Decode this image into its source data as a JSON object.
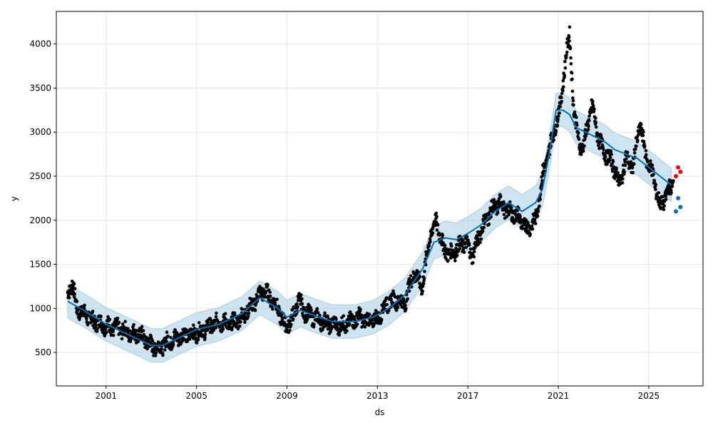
{
  "chart_data": {
    "type": "line",
    "title": "",
    "xlabel": "ds",
    "ylabel": "y",
    "xlim": [
      1998.8,
      2027.4
    ],
    "ylim": [
      120,
      4370
    ],
    "xticks": [
      2001,
      2005,
      2009,
      2013,
      2017,
      2021,
      2025
    ],
    "xtick_labels": [
      "2001",
      "2005",
      "2009",
      "2013",
      "2017",
      "2021",
      "2025"
    ],
    "yticks": [
      500,
      1000,
      1500,
      2000,
      2500,
      3000,
      3500,
      4000
    ],
    "ytick_labels": [
      "500",
      "1000",
      "1500",
      "2000",
      "2500",
      "3000",
      "3500",
      "4000"
    ],
    "grid": true,
    "colors": {
      "actual": "#000000",
      "forecast": "#0072B2",
      "interval": "#A6CEE3",
      "recent": "#FF0000"
    },
    "series": [
      {
        "role": "actual",
        "x": [
          1999.3,
          1999.5,
          1999.7,
          2000.0,
          2000.5,
          2001.0,
          2001.5,
          2002.0,
          2002.5,
          2003.0,
          2003.3,
          2003.7,
          2004.0,
          2004.5,
          2005.0,
          2005.5,
          2006.0,
          2006.5,
          2007.0,
          2007.5,
          2007.9,
          2008.2,
          2008.6,
          2008.9,
          2009.2,
          2009.5,
          2009.8,
          2010.2,
          2010.6,
          2011.0,
          2011.4,
          2011.8,
          2012.2,
          2012.6,
          2013.0,
          2013.4,
          2013.8,
          2014.2,
          2014.6,
          2015.0,
          2015.3,
          2015.6,
          2015.9,
          2016.2,
          2016.6,
          2016.9,
          2017.2,
          2017.6,
          2018.0,
          2018.4,
          2018.8,
          2019.2,
          2019.6,
          2020.0,
          2020.3,
          2020.6,
          2020.9,
          2021.1,
          2021.3,
          2021.5,
          2021.7,
          2021.9,
          2022.1,
          2022.3,
          2022.5,
          2022.8,
          2023.1,
          2023.4,
          2023.7,
          2024.0,
          2024.3,
          2024.6,
          2024.9,
          2025.2,
          2025.5,
          2025.8,
          2026.1
        ],
        "y": [
          1150,
          1300,
          1000,
          950,
          850,
          800,
          780,
          720,
          700,
          580,
          550,
          620,
          650,
          700,
          720,
          780,
          850,
          820,
          900,
          1050,
          1200,
          1150,
          1000,
          800,
          850,
          1100,
          950,
          900,
          850,
          820,
          800,
          850,
          900,
          850,
          880,
          1050,
          1100,
          1050,
          1400,
          1250,
          1800,
          2000,
          1700,
          1600,
          1700,
          1750,
          1600,
          1900,
          2100,
          2200,
          2100,
          2050,
          1900,
          2000,
          2500,
          2800,
          3100,
          3300,
          3800,
          4100,
          3200,
          2900,
          2800,
          3100,
          3300,
          2900,
          2750,
          2650,
          2400,
          2700,
          2600,
          3100,
          2700,
          2500,
          2150,
          2300,
          2450
        ]
      },
      {
        "role": "forecast",
        "x": [
          1999.3,
          2000.0,
          2001.0,
          2002.0,
          2003.0,
          2003.5,
          2004.0,
          2005.0,
          2006.0,
          2007.0,
          2007.8,
          2008.6,
          2009.0,
          2009.6,
          2010.2,
          2011.0,
          2012.0,
          2012.8,
          2013.5,
          2014.2,
          2015.0,
          2015.5,
          2016.0,
          2016.5,
          2017.0,
          2017.6,
          2018.2,
          2018.8,
          2019.4,
          2020.0,
          2020.3,
          2020.6,
          2020.9,
          2021.2,
          2021.5,
          2021.8,
          2022.2,
          2022.6,
          2023.0,
          2023.5,
          2024.0,
          2024.5,
          2025.0,
          2025.5,
          2026.0
        ],
        "y": [
          1080,
          980,
          820,
          700,
          580,
          580,
          640,
          760,
          820,
          940,
          1120,
          1000,
          900,
          980,
          920,
          850,
          850,
          900,
          1000,
          1150,
          1450,
          1750,
          1800,
          1780,
          1850,
          1950,
          2100,
          2200,
          2100,
          2200,
          2350,
          2750,
          3250,
          3250,
          3200,
          3050,
          3000,
          2950,
          2900,
          2800,
          2750,
          2700,
          2600,
          2500,
          2400
        ]
      },
      {
        "role": "recent",
        "x": [
          2026.2,
          2026.3,
          2026.4
        ],
        "y": [
          2500,
          2600,
          2550
        ]
      },
      {
        "role": "projection",
        "x": [
          2026.2,
          2026.3,
          2026.4
        ],
        "y": [
          2100,
          2250,
          2150
        ]
      }
    ]
  }
}
